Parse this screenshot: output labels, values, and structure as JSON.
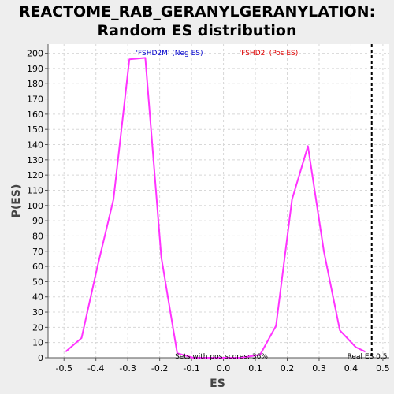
{
  "chart_data": {
    "type": "line",
    "title_line1": "REACTOME_RAB_GERANYLGERANYLATION:",
    "title_line2": "Random ES distribution",
    "xlabel": "ES",
    "ylabel": "P(ES)",
    "xlim": [
      -0.55,
      0.52
    ],
    "ylim": [
      0,
      206
    ],
    "xticks": [
      -0.5,
      -0.4,
      -0.3,
      -0.2,
      -0.1,
      0.0,
      0.1,
      0.2,
      0.3,
      0.4,
      0.5
    ],
    "xtick_labels": [
      "-0.5",
      "-0.4",
      "-0.3",
      "-0.2",
      "-0.1",
      "0.0",
      "0.1",
      "0.2",
      "0.3",
      "0.4",
      "0.5"
    ],
    "yticks": [
      0,
      10,
      20,
      30,
      40,
      50,
      60,
      70,
      80,
      90,
      100,
      110,
      120,
      130,
      140,
      150,
      160,
      170,
      180,
      190,
      200
    ],
    "grid": true,
    "series": [
      {
        "color": "#ff33ff",
        "x": [
          -0.495,
          -0.445,
          -0.395,
          -0.345,
          -0.295,
          -0.245,
          -0.195,
          -0.145,
          -0.095,
          -0.045,
          0.005,
          0.055,
          0.115,
          0.165,
          0.215,
          0.265,
          0.315,
          0.365,
          0.415,
          0.445
        ],
        "y": [
          4,
          13,
          60,
          104,
          196,
          197,
          66,
          3,
          0,
          0,
          0,
          0,
          2,
          21,
          104,
          139,
          70,
          18,
          7,
          4
        ]
      }
    ],
    "real_es": 0.465,
    "annotations": {
      "neg_label": "'FSHD2M' (Neg ES)",
      "neg_color": "#0000cc",
      "pos_label": "'FSHD2' (Pos ES)",
      "pos_color": "#dd0000",
      "pos_scores_text": "Sets with pos scores: 36%",
      "real_es_text": "Real ES 0.5"
    },
    "colors": {
      "plot_bg": "#ffffff",
      "page_bg": "#eeeeee",
      "grid": "#d8d8d8",
      "real_es_line": "#000000"
    }
  }
}
